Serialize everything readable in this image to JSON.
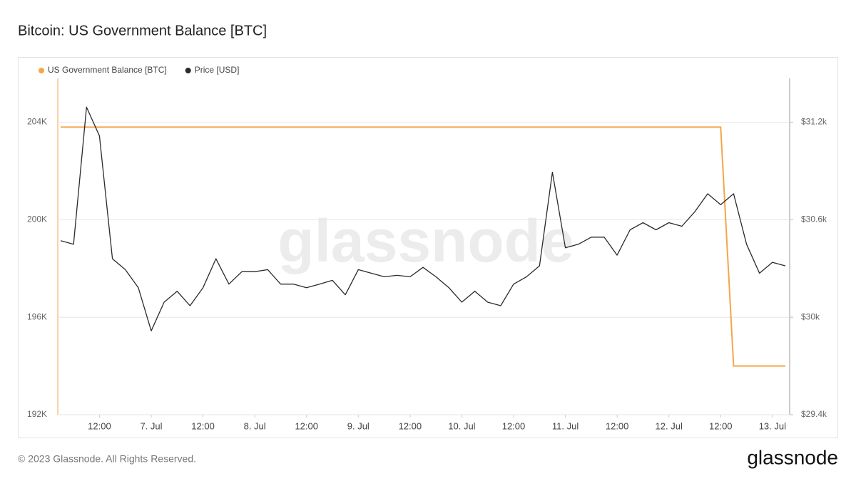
{
  "chart_data": {
    "type": "line",
    "title": "Bitcoin: US Government Balance [BTC]",
    "watermark": "glassnode",
    "x": [
      "6. Jul 03:00",
      "6. Jul 06:00",
      "6. Jul 09:00",
      "6. Jul 12:00",
      "6. Jul 15:00",
      "6. Jul 18:00",
      "6. Jul 21:00",
      "7. Jul 00:00",
      "7. Jul 03:00",
      "7. Jul 06:00",
      "7. Jul 09:00",
      "7. Jul 12:00",
      "7. Jul 15:00",
      "7. Jul 18:00",
      "7. Jul 21:00",
      "8. Jul 00:00",
      "8. Jul 03:00",
      "8. Jul 06:00",
      "8. Jul 09:00",
      "8. Jul 12:00",
      "8. Jul 15:00",
      "8. Jul 18:00",
      "8. Jul 21:00",
      "9. Jul 00:00",
      "9. Jul 03:00",
      "9. Jul 06:00",
      "9. Jul 09:00",
      "9. Jul 12:00",
      "9. Jul 15:00",
      "9. Jul 18:00",
      "9. Jul 21:00",
      "10. Jul 00:00",
      "10. Jul 03:00",
      "10. Jul 06:00",
      "10. Jul 09:00",
      "10. Jul 12:00",
      "10. Jul 15:00",
      "10. Jul 18:00",
      "10. Jul 21:00",
      "11. Jul 00:00",
      "11. Jul 03:00",
      "11. Jul 06:00",
      "11. Jul 09:00",
      "11. Jul 12:00",
      "11. Jul 15:00",
      "11. Jul 18:00",
      "11. Jul 21:00",
      "12. Jul 00:00",
      "12. Jul 03:00",
      "12. Jul 06:00",
      "12. Jul 09:00",
      "12. Jul 12:00",
      "12. Jul 15:00",
      "12. Jul 18:00",
      "12. Jul 21:00",
      "13. Jul 00:00",
      "13. Jul 03:00"
    ],
    "xticks": [
      {
        "value": "6. Jul 12:00",
        "label": "12:00"
      },
      {
        "value": "7. Jul 00:00",
        "label": "7. Jul"
      },
      {
        "value": "7. Jul 12:00",
        "label": "12:00"
      },
      {
        "value": "8. Jul 00:00",
        "label": "8. Jul"
      },
      {
        "value": "8. Jul 12:00",
        "label": "12:00"
      },
      {
        "value": "9. Jul 00:00",
        "label": "9. Jul"
      },
      {
        "value": "9. Jul 12:00",
        "label": "12:00"
      },
      {
        "value": "10. Jul 00:00",
        "label": "10. Jul"
      },
      {
        "value": "10. Jul 12:00",
        "label": "12:00"
      },
      {
        "value": "11. Jul 00:00",
        "label": "11. Jul"
      },
      {
        "value": "11. Jul 12:00",
        "label": "12:00"
      },
      {
        "value": "12. Jul 00:00",
        "label": "12. Jul"
      },
      {
        "value": "12. Jul 12:00",
        "label": "12:00"
      },
      {
        "value": "13. Jul 00:00",
        "label": "13. Jul"
      }
    ],
    "ylim": [
      192000,
      205800
    ],
    "yticks": [
      {
        "value": 192000,
        "label": "192K"
      },
      {
        "value": 196000,
        "label": "196K"
      },
      {
        "value": 200000,
        "label": "200K"
      },
      {
        "value": 204000,
        "label": "204K"
      }
    ],
    "y2lim": [
      29400,
      31470
    ],
    "y2ticks": [
      {
        "value": 29400,
        "label": "$29.4k"
      },
      {
        "value": 30000,
        "label": "$30k"
      },
      {
        "value": 30600,
        "label": "$30.6k"
      },
      {
        "value": 31200,
        "label": "$31.2k"
      }
    ],
    "grid": true,
    "legend": "top-left",
    "series": [
      {
        "name": "US Government Balance [BTC]",
        "color": "#f5a54a",
        "values": [
          203800,
          203800,
          203800,
          203800,
          203800,
          203800,
          203800,
          203800,
          203800,
          203800,
          203800,
          203800,
          203800,
          203800,
          203800,
          203800,
          203800,
          203800,
          203800,
          203800,
          203800,
          203800,
          203800,
          203800,
          203800,
          203800,
          203800,
          203800,
          203800,
          203800,
          203800,
          203800,
          203800,
          203800,
          203800,
          203800,
          203800,
          203800,
          203800,
          203800,
          203800,
          203800,
          203800,
          203800,
          203800,
          203800,
          203800,
          203800,
          203800,
          203800,
          203800,
          203800,
          194000,
          194000,
          194000,
          194000,
          194000
        ]
      },
      {
        "name": "Price [USD]",
        "color": "#2a2a2a",
        "axis": "y2",
        "values": [
          30471,
          30449,
          31293,
          31116,
          30360,
          30293,
          30182,
          29916,
          30093,
          30160,
          30071,
          30182,
          30360,
          30204,
          30280,
          30280,
          30293,
          30204,
          30204,
          30182,
          30204,
          30227,
          30138,
          30293,
          30271,
          30249,
          30258,
          30249,
          30307,
          30249,
          30182,
          30093,
          30160,
          30093,
          30071,
          30204,
          30249,
          30316,
          30893,
          30427,
          30449,
          30493,
          30493,
          30382,
          30538,
          30582,
          30538,
          30582,
          30560,
          30649,
          30760,
          30693,
          30760,
          30449,
          30271,
          30338,
          30316
        ]
      }
    ]
  },
  "footer": "© 2023 Glassnode. All Rights Reserved.",
  "logo": "glassnode"
}
